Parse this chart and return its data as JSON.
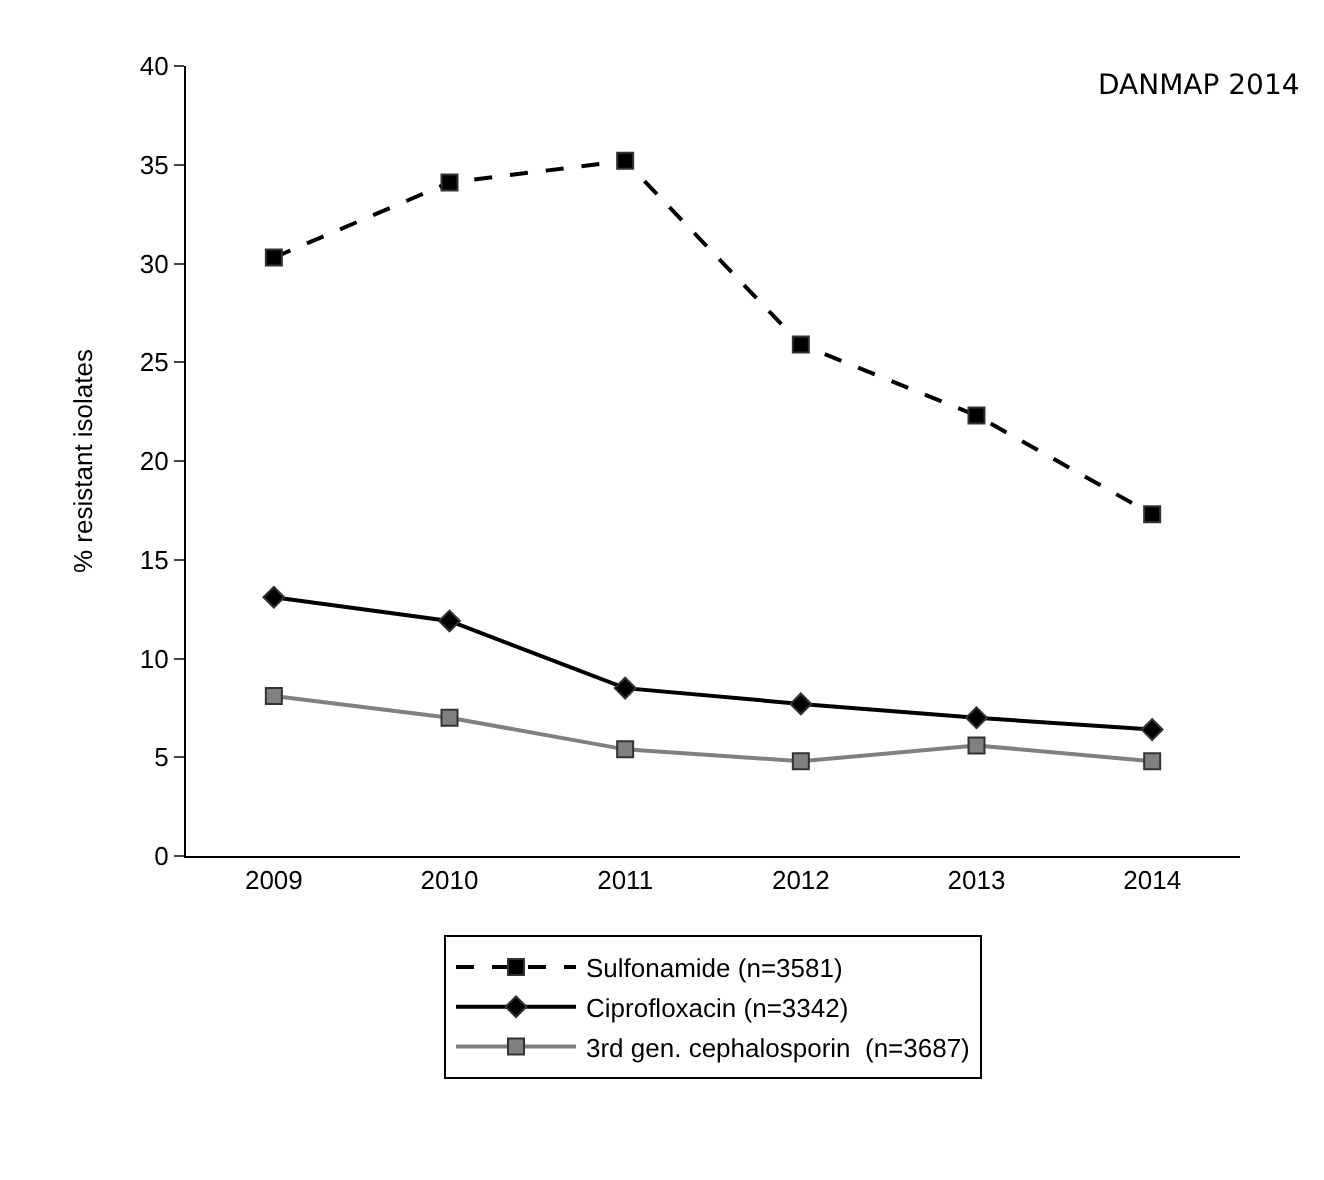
{
  "chart_data": {
    "type": "line",
    "ylabel": "% resistant isolates",
    "categories": [
      "2009",
      "2010",
      "2011",
      "2012",
      "2013",
      "2014"
    ],
    "ylim": [
      0,
      40
    ],
    "yticks": [
      0,
      5,
      10,
      15,
      20,
      25,
      30,
      35,
      40
    ],
    "legend": "bottom",
    "annotations": [
      "DANMAP 2014"
    ],
    "series": [
      {
        "name": "Sulfonamide (n=3581)",
        "color": "#000000",
        "marker": "square",
        "line_style": "dashed",
        "values": [
          30.3,
          34.1,
          35.2,
          25.9,
          22.3,
          17.3
        ]
      },
      {
        "name": "Ciprofloxacin (n=3342)",
        "color": "#000000",
        "marker": "diamond",
        "line_style": "solid",
        "values": [
          13.1,
          11.9,
          8.5,
          7.7,
          7.0,
          6.4
        ]
      },
      {
        "name": "3rd gen. cephalosporin  (n=3687)",
        "color": "#808080",
        "marker": "square",
        "line_style": "solid",
        "values": [
          8.1,
          7.0,
          5.4,
          4.8,
          5.6,
          4.8
        ]
      }
    ]
  }
}
